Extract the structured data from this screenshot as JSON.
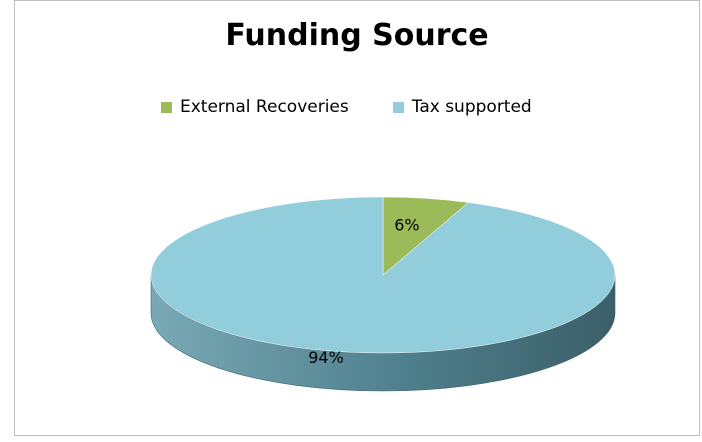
{
  "chart_data": {
    "type": "pie",
    "title": "Funding Source",
    "legend_position": "top",
    "labels": [
      "External Recoveries",
      "Tax supported"
    ],
    "values": [
      6,
      94
    ],
    "data_labels": [
      "6%",
      "94%"
    ],
    "colors": [
      "#9bbb59",
      "#92cddc"
    ],
    "side_colors": [
      "#6d8a3a",
      "#4a7683"
    ]
  }
}
